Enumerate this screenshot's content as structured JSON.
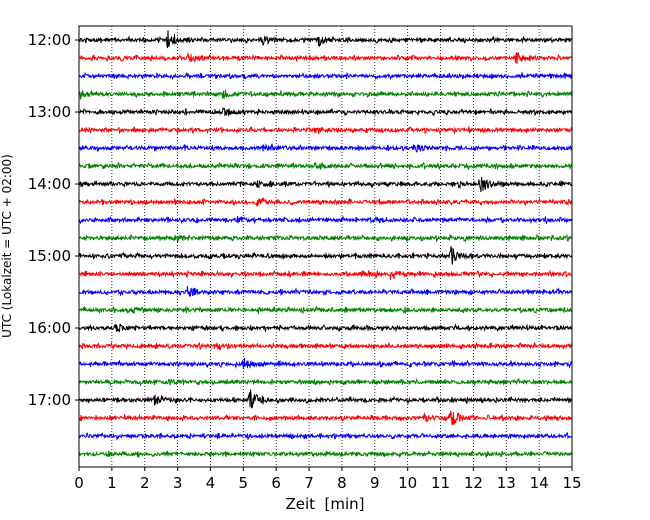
{
  "chart_data": {
    "type": "line",
    "subtype": "helicorder",
    "xlabel": "Zeit  [min]",
    "ylabel": "UTC (Lokalzeit = UTC + 02:00)",
    "xlim": [
      0,
      15
    ],
    "x_ticks": [
      "0",
      "1",
      "2",
      "3",
      "4",
      "5",
      "6",
      "7",
      "8",
      "9",
      "10",
      "11",
      "12",
      "13",
      "14",
      "15"
    ],
    "y_ticks": [
      "12:00",
      "13:00",
      "14:00",
      "15:00",
      "16:00",
      "17:00"
    ],
    "grid": {
      "x": "dotted",
      "y": false
    },
    "line_interval_minutes": 15,
    "line_colors": [
      "#000000",
      "#ff0000",
      "#0000ff",
      "#008000"
    ],
    "traces": [
      {
        "start": "12:00",
        "color": "#000000",
        "events": [
          {
            "t": 2.7,
            "amp": 1.0
          },
          {
            "t": 7.3,
            "amp": 0.5
          },
          {
            "t": 5.6,
            "amp": 0.5
          }
        ]
      },
      {
        "start": "12:15",
        "color": "#ff0000",
        "events": [
          {
            "t": 13.3,
            "amp": 0.6
          },
          {
            "t": 3.3,
            "amp": 0.5
          }
        ]
      },
      {
        "start": "12:30",
        "color": "#0000ff",
        "events": [
          {
            "t": 15.0,
            "amp": 0.5
          }
        ]
      },
      {
        "start": "12:45",
        "color": "#008000",
        "events": [
          {
            "t": 0.0,
            "amp": 0.5
          },
          {
            "t": 4.4,
            "amp": 0.4
          }
        ]
      },
      {
        "start": "13:00",
        "color": "#000000",
        "events": [
          {
            "t": 4.4,
            "amp": 0.4
          }
        ]
      },
      {
        "start": "13:15",
        "color": "#ff0000",
        "events": [
          {
            "t": 7.2,
            "amp": 0.35
          }
        ]
      },
      {
        "start": "13:30",
        "color": "#0000ff",
        "events": [
          {
            "t": 10.2,
            "amp": 0.5
          },
          {
            "t": 5.6,
            "amp": 0.3
          }
        ]
      },
      {
        "start": "13:45",
        "color": "#008000",
        "events": [
          {
            "t": 7.2,
            "amp": 0.3
          }
        ]
      },
      {
        "start": "14:00",
        "color": "#000000",
        "events": [
          {
            "t": 12.2,
            "amp": 1.0
          },
          {
            "t": 11.2,
            "amp": 0.4
          },
          {
            "t": 5.4,
            "amp": 0.3
          }
        ]
      },
      {
        "start": "14:15",
        "color": "#ff0000",
        "events": [
          {
            "t": 5.4,
            "amp": 0.4
          }
        ]
      },
      {
        "start": "14:30",
        "color": "#0000ff",
        "events": [
          {
            "t": 4.8,
            "amp": 0.3
          },
          {
            "t": 9.0,
            "amp": 0.3
          }
        ]
      },
      {
        "start": "14:45",
        "color": "#008000",
        "events": [
          {
            "t": 3.0,
            "amp": 0.3
          }
        ]
      },
      {
        "start": "15:00",
        "color": "#000000",
        "events": [
          {
            "t": 11.3,
            "amp": 1.2
          }
        ]
      },
      {
        "start": "15:15",
        "color": "#ff0000",
        "events": [
          {
            "t": 9.5,
            "amp": 0.6
          },
          {
            "t": 8.6,
            "amp": 0.5
          }
        ]
      },
      {
        "start": "15:30",
        "color": "#0000ff",
        "events": [
          {
            "t": 3.3,
            "amp": 0.5
          }
        ]
      },
      {
        "start": "15:45",
        "color": "#008000",
        "events": [
          {
            "t": 1.6,
            "amp": 0.3
          }
        ]
      },
      {
        "start": "16:00",
        "color": "#000000",
        "events": [
          {
            "t": 1.1,
            "amp": 0.3
          }
        ]
      },
      {
        "start": "16:15",
        "color": "#ff0000",
        "events": [
          {
            "t": 4.2,
            "amp": 0.35
          }
        ]
      },
      {
        "start": "16:30",
        "color": "#0000ff",
        "events": [
          {
            "t": 5.0,
            "amp": 0.6
          }
        ]
      },
      {
        "start": "16:45",
        "color": "#008000",
        "events": [
          {
            "t": 2.8,
            "amp": 0.2
          }
        ]
      },
      {
        "start": "17:00",
        "color": "#000000",
        "events": [
          {
            "t": 5.2,
            "amp": 1.2
          },
          {
            "t": 2.3,
            "amp": 0.5
          }
        ]
      },
      {
        "start": "17:15",
        "color": "#ff0000",
        "events": [
          {
            "t": 11.3,
            "amp": 1.0
          },
          {
            "t": 10.5,
            "amp": 0.4
          }
        ]
      },
      {
        "start": "17:30",
        "color": "#0000ff",
        "events": []
      },
      {
        "start": "17:45",
        "color": "#008000",
        "events": []
      }
    ]
  }
}
